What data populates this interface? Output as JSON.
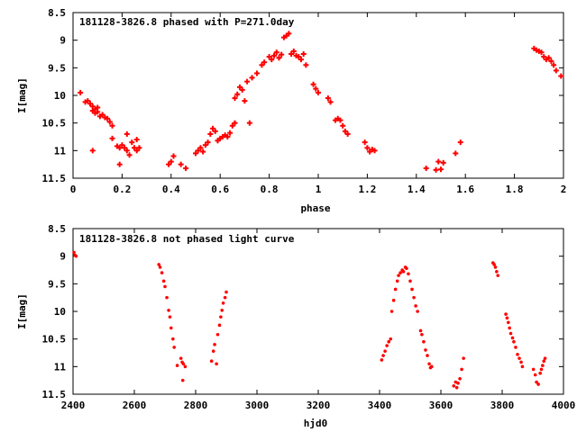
{
  "chart_data": [
    {
      "type": "scatter",
      "title": "181128-3826.8 phased with P=271.0day",
      "xlabel": "phase",
      "ylabel": "I[mag]",
      "xlim": [
        0,
        2
      ],
      "ylim": [
        11.5,
        8.5
      ],
      "y_inverted": true,
      "x_ticks": [
        "0",
        "0.2",
        "0.4",
        "0.6",
        "0.8",
        "1",
        "1.2",
        "1.4",
        "1.6",
        "1.8",
        "2"
      ],
      "y_ticks": [
        "8.5",
        "9",
        "9.5",
        "10",
        "10.5",
        "11",
        "11.5"
      ],
      "marker": "plus",
      "color": "#ff0000",
      "grid": false,
      "points": [
        [
          0.03,
          9.95
        ],
        [
          0.05,
          10.12
        ],
        [
          0.06,
          10.1
        ],
        [
          0.07,
          10.15
        ],
        [
          0.08,
          10.2
        ],
        [
          0.08,
          10.28
        ],
        [
          0.09,
          10.25
        ],
        [
          0.09,
          10.32
        ],
        [
          0.1,
          10.22
        ],
        [
          0.1,
          10.3
        ],
        [
          0.11,
          10.38
        ],
        [
          0.12,
          10.35
        ],
        [
          0.13,
          10.4
        ],
        [
          0.14,
          10.42
        ],
        [
          0.15,
          10.48
        ],
        [
          0.16,
          10.55
        ],
        [
          0.08,
          11.0
        ],
        [
          0.16,
          10.78
        ],
        [
          0.18,
          10.92
        ],
        [
          0.19,
          10.95
        ],
        [
          0.2,
          10.9
        ],
        [
          0.21,
          10.95
        ],
        [
          0.22,
          10.7
        ],
        [
          0.22,
          11.0
        ],
        [
          0.23,
          11.08
        ],
        [
          0.24,
          10.85
        ],
        [
          0.25,
          10.95
        ],
        [
          0.26,
          10.8
        ],
        [
          0.27,
          10.95
        ],
        [
          0.19,
          11.25
        ],
        [
          0.26,
          11.0
        ],
        [
          0.39,
          11.25
        ],
        [
          0.4,
          11.2
        ],
        [
          0.41,
          11.1
        ],
        [
          0.44,
          11.25
        ],
        [
          0.46,
          11.32
        ],
        [
          0.5,
          11.05
        ],
        [
          0.51,
          11.0
        ],
        [
          0.52,
          10.95
        ],
        [
          0.53,
          11.02
        ],
        [
          0.54,
          10.9
        ],
        [
          0.55,
          10.85
        ],
        [
          0.56,
          10.7
        ],
        [
          0.57,
          10.6
        ],
        [
          0.58,
          10.65
        ],
        [
          0.59,
          10.82
        ],
        [
          0.6,
          10.78
        ],
        [
          0.61,
          10.75
        ],
        [
          0.62,
          10.72
        ],
        [
          0.63,
          10.75
        ],
        [
          0.64,
          10.68
        ],
        [
          0.65,
          10.55
        ],
        [
          0.66,
          10.5
        ],
        [
          0.66,
          10.05
        ],
        [
          0.67,
          9.98
        ],
        [
          0.68,
          9.85
        ],
        [
          0.69,
          9.9
        ],
        [
          0.7,
          10.1
        ],
        [
          0.71,
          9.75
        ],
        [
          0.72,
          10.5
        ],
        [
          0.73,
          9.68
        ],
        [
          0.75,
          9.6
        ],
        [
          0.77,
          9.45
        ],
        [
          0.78,
          9.4
        ],
        [
          0.8,
          9.3
        ],
        [
          0.81,
          9.35
        ],
        [
          0.82,
          9.28
        ],
        [
          0.83,
          9.22
        ],
        [
          0.84,
          9.32
        ],
        [
          0.85,
          9.26
        ],
        [
          0.86,
          8.95
        ],
        [
          0.87,
          8.92
        ],
        [
          0.88,
          8.88
        ],
        [
          0.89,
          9.25
        ],
        [
          0.9,
          9.2
        ],
        [
          0.91,
          9.28
        ],
        [
          0.92,
          9.3
        ],
        [
          0.93,
          9.35
        ],
        [
          0.94,
          9.25
        ],
        [
          0.95,
          9.45
        ],
        [
          0.98,
          9.8
        ],
        [
          0.99,
          9.88
        ],
        [
          1.0,
          9.95
        ],
        [
          1.04,
          10.05
        ],
        [
          1.05,
          10.12
        ],
        [
          1.07,
          10.45
        ],
        [
          1.08,
          10.42
        ],
        [
          1.09,
          10.45
        ],
        [
          1.1,
          10.55
        ],
        [
          1.11,
          10.65
        ],
        [
          1.12,
          10.7
        ],
        [
          1.19,
          10.85
        ],
        [
          1.2,
          10.95
        ],
        [
          1.21,
          11.02
        ],
        [
          1.22,
          10.98
        ],
        [
          1.23,
          11.0
        ],
        [
          1.44,
          11.32
        ],
        [
          1.48,
          11.35
        ],
        [
          1.49,
          11.2
        ],
        [
          1.5,
          11.34
        ],
        [
          1.51,
          11.22
        ],
        [
          1.56,
          11.05
        ],
        [
          1.58,
          10.85
        ],
        [
          1.88,
          9.15
        ],
        [
          1.89,
          9.18
        ],
        [
          1.9,
          9.2
        ],
        [
          1.91,
          9.22
        ],
        [
          1.92,
          9.3
        ],
        [
          1.93,
          9.35
        ],
        [
          1.94,
          9.32
        ],
        [
          1.95,
          9.38
        ],
        [
          1.96,
          9.45
        ],
        [
          1.97,
          9.55
        ],
        [
          1.99,
          9.65
        ]
      ]
    },
    {
      "type": "scatter",
      "title": "181128-3826.8 not phased light curve",
      "xlabel": "hjd0",
      "ylabel": "I[mag]",
      "xlim": [
        2400,
        4000
      ],
      "ylim": [
        11.5,
        8.5
      ],
      "y_inverted": true,
      "x_ticks": [
        "2400",
        "2600",
        "2800",
        "3000",
        "3200",
        "3400",
        "3600",
        "3800",
        "4000"
      ],
      "y_ticks": [
        "8.5",
        "9",
        "9.5",
        "10",
        "10.5",
        "11",
        "11.5"
      ],
      "marker": "dot",
      "color": "#ff0000",
      "grid": false,
      "points": [
        [
          2403,
          8.93
        ],
        [
          2406,
          8.98
        ],
        [
          2410,
          9.0
        ],
        [
          2680,
          9.15
        ],
        [
          2684,
          9.2
        ],
        [
          2690,
          9.3
        ],
        [
          2696,
          9.45
        ],
        [
          2700,
          9.55
        ],
        [
          2706,
          9.75
        ],
        [
          2712,
          9.98
        ],
        [
          2716,
          10.1
        ],
        [
          2720,
          10.3
        ],
        [
          2726,
          10.5
        ],
        [
          2730,
          10.65
        ],
        [
          2740,
          10.98
        ],
        [
          2752,
          10.85
        ],
        [
          2756,
          10.92
        ],
        [
          2760,
          10.95
        ],
        [
          2766,
          11.0
        ],
        [
          2758,
          11.25
        ],
        [
          2852,
          10.9
        ],
        [
          2858,
          10.72
        ],
        [
          2862,
          10.6
        ],
        [
          2868,
          10.95
        ],
        [
          2872,
          10.42
        ],
        [
          2878,
          10.25
        ],
        [
          2882,
          10.1
        ],
        [
          2886,
          9.98
        ],
        [
          2890,
          9.85
        ],
        [
          2896,
          9.75
        ],
        [
          2900,
          9.65
        ],
        [
          3407,
          10.88
        ],
        [
          3412,
          10.8
        ],
        [
          3418,
          10.72
        ],
        [
          3424,
          10.62
        ],
        [
          3430,
          10.55
        ],
        [
          3436,
          10.5
        ],
        [
          3440,
          10.0
        ],
        [
          3446,
          9.8
        ],
        [
          3452,
          9.6
        ],
        [
          3458,
          9.45
        ],
        [
          3462,
          9.35
        ],
        [
          3468,
          9.3
        ],
        [
          3474,
          9.25
        ],
        [
          3478,
          9.28
        ],
        [
          3484,
          9.2
        ],
        [
          3488,
          9.22
        ],
        [
          3494,
          9.32
        ],
        [
          3500,
          9.45
        ],
        [
          3506,
          9.6
        ],
        [
          3512,
          9.75
        ],
        [
          3518,
          9.9
        ],
        [
          3524,
          10.0
        ],
        [
          3534,
          10.35
        ],
        [
          3538,
          10.42
        ],
        [
          3544,
          10.55
        ],
        [
          3550,
          10.7
        ],
        [
          3556,
          10.8
        ],
        [
          3562,
          10.95
        ],
        [
          3566,
          11.02
        ],
        [
          3570,
          11.0
        ],
        [
          3642,
          11.35
        ],
        [
          3648,
          11.28
        ],
        [
          3652,
          11.38
        ],
        [
          3656,
          11.3
        ],
        [
          3662,
          11.22
        ],
        [
          3668,
          11.05
        ],
        [
          3674,
          10.85
        ],
        [
          3770,
          9.12
        ],
        [
          3774,
          9.15
        ],
        [
          3778,
          9.2
        ],
        [
          3782,
          9.28
        ],
        [
          3786,
          9.35
        ],
        [
          3812,
          10.05
        ],
        [
          3816,
          10.12
        ],
        [
          3820,
          10.2
        ],
        [
          3824,
          10.3
        ],
        [
          3828,
          10.4
        ],
        [
          3834,
          10.48
        ],
        [
          3838,
          10.55
        ],
        [
          3844,
          10.65
        ],
        [
          3850,
          10.78
        ],
        [
          3856,
          10.85
        ],
        [
          3862,
          10.92
        ],
        [
          3866,
          11.0
        ],
        [
          3902,
          11.05
        ],
        [
          3908,
          11.15
        ],
        [
          3912,
          11.28
        ],
        [
          3918,
          11.32
        ],
        [
          3924,
          11.12
        ],
        [
          3928,
          11.05
        ],
        [
          3932,
          10.98
        ],
        [
          3936,
          10.9
        ],
        [
          3940,
          10.85
        ]
      ]
    }
  ]
}
